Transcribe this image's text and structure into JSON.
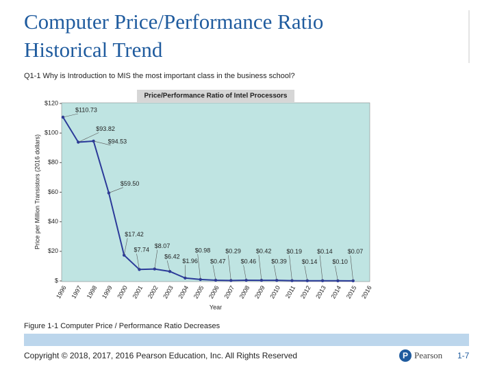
{
  "slide": {
    "title": [
      "Computer Price/Performance Ratio",
      "Historical Trend"
    ],
    "subtitle": "Q1-1  Why is Introduction to MIS the most important class in the business school?",
    "caption": "Figure 1-1 Computer Price / Performance Ratio Decreases",
    "copyright": "Copyright © 2018, 2017, 2016 Pearson Education, Inc. All Rights Reserved",
    "brand": "Pearson",
    "page": "1-7"
  },
  "chart_data": {
    "type": "line",
    "title": "Price/Performance Ratio of Intel Processors",
    "x_label": "Year",
    "y_label": "Price per Million Transistors (2016 dollars)",
    "categories": [
      "1996",
      "1997",
      "1998",
      "1999",
      "2000",
      "2001",
      "2002",
      "2003",
      "2004",
      "2005",
      "2006",
      "2007",
      "2008",
      "2009",
      "2010",
      "2011",
      "2012",
      "2013",
      "2014",
      "2015",
      "2016"
    ],
    "values": [
      110.73,
      93.82,
      94.53,
      59.5,
      17.42,
      7.74,
      8.07,
      6.42,
      1.96,
      0.98,
      0.47,
      0.29,
      0.46,
      0.42,
      0.39,
      0.19,
      0.14,
      0.14,
      0.1,
      0.07,
      null
    ],
    "value_labels": [
      "$110.73",
      "$93.82",
      "$94.53",
      "$59.50",
      "$17.42",
      "$7.74",
      "$8.07",
      "$6.42",
      "$1.96",
      "$0.98",
      "$0.47",
      "$0.29",
      "$0.46",
      "$0.42",
      "$0.39",
      "$0.19",
      "$0.14",
      "$0.14",
      "$0.10",
      "$0.07",
      null
    ],
    "color": "#2b3a99",
    "ylim": [
      0,
      120
    ],
    "yticks": [
      {
        "value": 0,
        "label": "$"
      },
      {
        "value": 20,
        "label": "$20"
      },
      {
        "value": 40,
        "label": "$40"
      },
      {
        "value": 60,
        "label": "$60"
      },
      {
        "value": 80,
        "label": "$80"
      },
      {
        "value": 100,
        "label": "$100"
      },
      {
        "value": 120,
        "label": "$120"
      }
    ],
    "grid": false
  }
}
